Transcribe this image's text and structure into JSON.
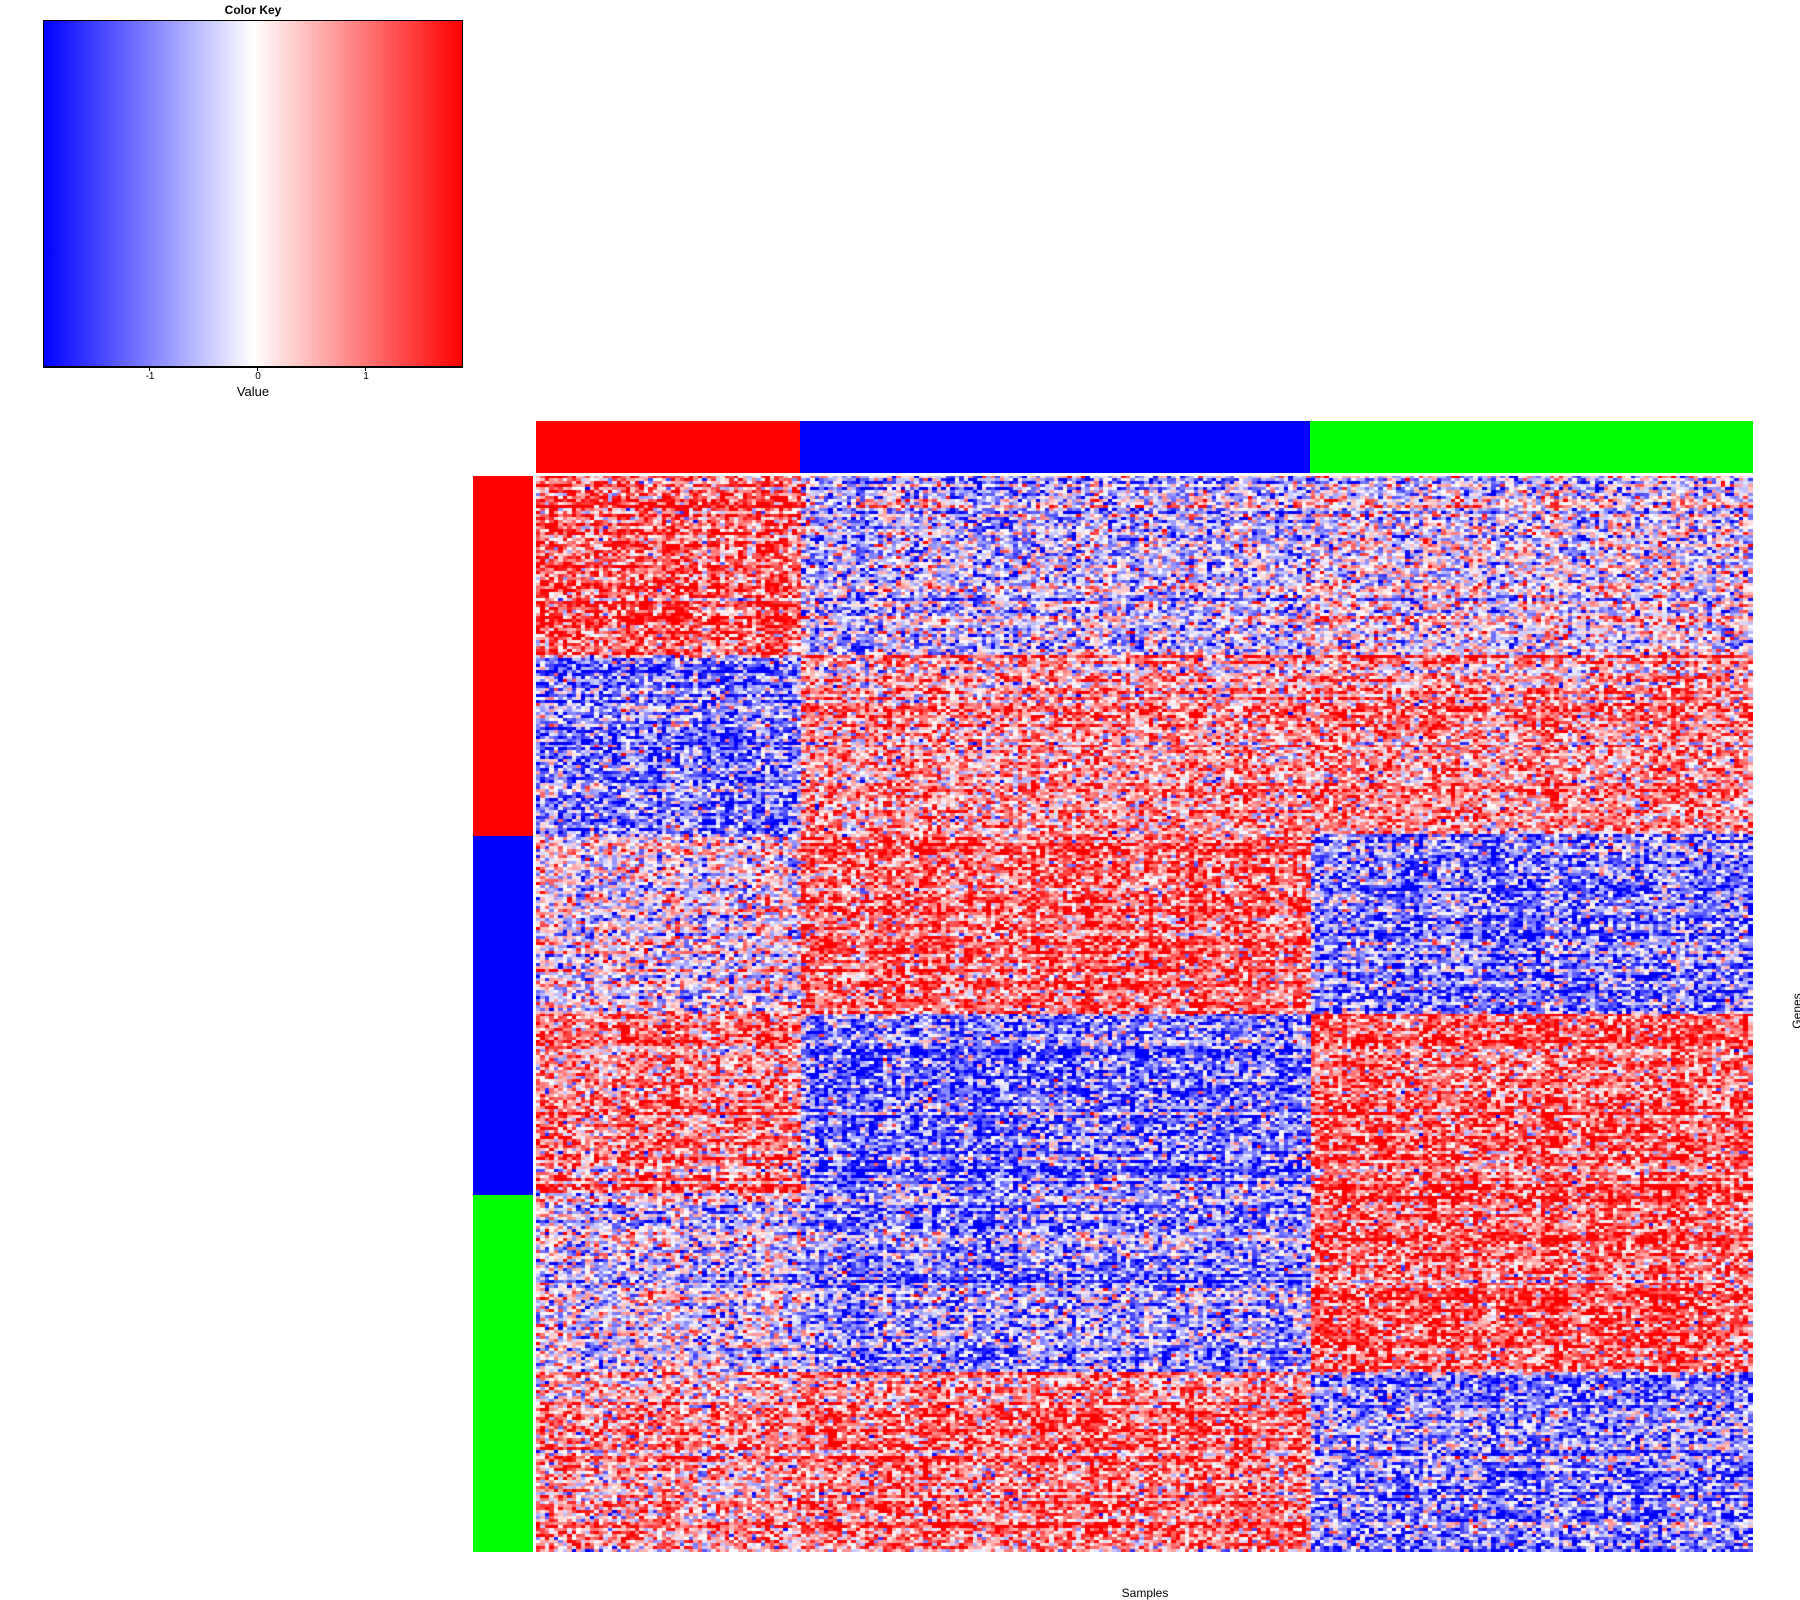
{
  "chart_data": {
    "type": "heatmap",
    "color_key": {
      "title": "Color Key",
      "xlabel": "Value",
      "ticks": [
        "-1",
        "0",
        "1"
      ],
      "range": [
        -1.95,
        1.95
      ],
      "low_color": "#0000ff",
      "mid_color": "#ffffff",
      "high_color": "#ff0000"
    },
    "xlabel": "Samples",
    "ylabel": "Genes",
    "n_columns": 270,
    "n_rows": 360,
    "column_groups": [
      {
        "color": "#ff0000",
        "count": 59
      },
      {
        "color": "#0000ff",
        "count": 113
      },
      {
        "color": "#00ff00",
        "count": 98
      }
    ],
    "row_groups": [
      {
        "color": "#ff0000",
        "count": 120
      },
      {
        "color": "#0000ff",
        "count": 120
      },
      {
        "color": "#00ff00",
        "count": 120
      }
    ],
    "row_blocks": [
      {
        "rows": 60,
        "mean_by_column_group": [
          1.2,
          -0.4,
          -0.1
        ]
      },
      {
        "rows": 60,
        "mean_by_column_group": [
          -1.0,
          0.6,
          0.7
        ]
      },
      {
        "rows": 60,
        "mean_by_column_group": [
          0.1,
          1.2,
          -0.9
        ]
      },
      {
        "rows": 60,
        "mean_by_column_group": [
          0.9,
          -1.1,
          1.1
        ]
      },
      {
        "rows": 60,
        "mean_by_column_group": [
          -0.2,
          -0.8,
          1.2
        ]
      },
      {
        "rows": 60,
        "mean_by_column_group": [
          0.6,
          0.9,
          -1.0
        ]
      }
    ]
  }
}
